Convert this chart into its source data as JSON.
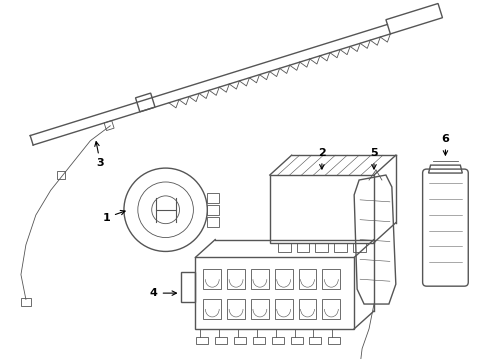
{
  "bg_color": "#ffffff",
  "line_color": "#555555",
  "line_width": 1.0,
  "thin_line": 0.6,
  "label_fontsize": 8,
  "label_color": "#000000"
}
